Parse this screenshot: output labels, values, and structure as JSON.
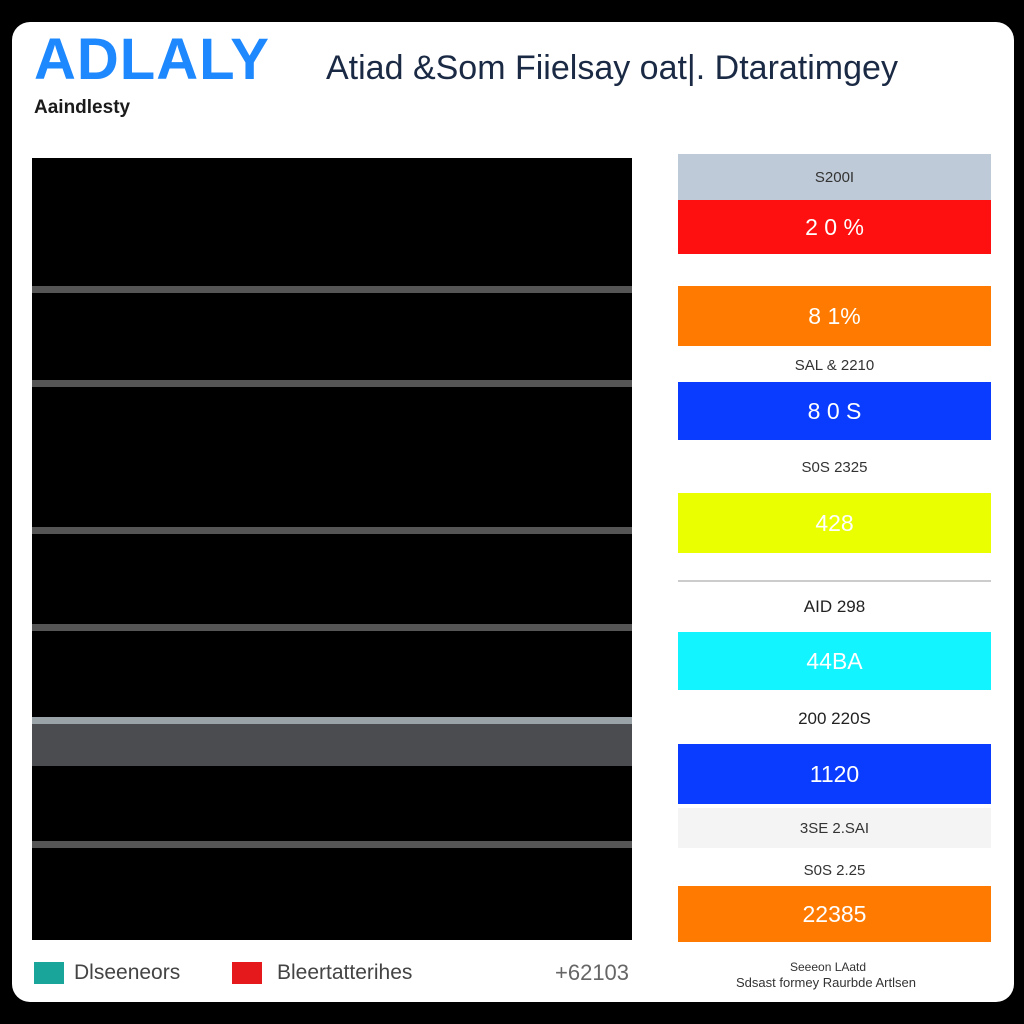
{
  "header": {
    "logo": "ADLALY",
    "title": "Atiad &Som Fiielsay  oat|. Dtaratimgey",
    "subtitle": "Aaindlesty"
  },
  "tiles": [
    {
      "text": "S200I",
      "color": "#bfcad8"
    },
    {
      "text": "2 0 %",
      "color": "#ff1010"
    },
    {
      "text": "8 1%",
      "color": "#ff7a00"
    },
    {
      "text": "SAL & 2210",
      "color": "#ffffff"
    },
    {
      "text": "8 0 S",
      "color": "#0a3cff"
    },
    {
      "text": "S0S 2325",
      "color": "#ffffff"
    },
    {
      "text": "428",
      "color": "#eaff00"
    },
    {
      "text": "AID 298",
      "color": "#ffffff"
    },
    {
      "text": "44BA",
      "color": "#12f4ff"
    },
    {
      "text": "200 220S",
      "color": "#ffffff"
    },
    {
      "text": "1120",
      "color": "#0a3cff"
    },
    {
      "text": "3SE 2.SAI",
      "color": "#f4f4f4"
    },
    {
      "text": "S0S 2.25",
      "color": "#ffffff"
    },
    {
      "text": "22385",
      "color": "#ff7a00"
    }
  ],
  "legend": [
    {
      "label": "Dlseeneors",
      "color": "#1aa59a"
    },
    {
      "label": "Bleertatterihes",
      "color": "#e5191b"
    }
  ],
  "footer": {
    "number": "+62103",
    "note_line1": "Seeeon LAatd",
    "note_line2": "Sdsast formey Raurbde Artlsen"
  }
}
